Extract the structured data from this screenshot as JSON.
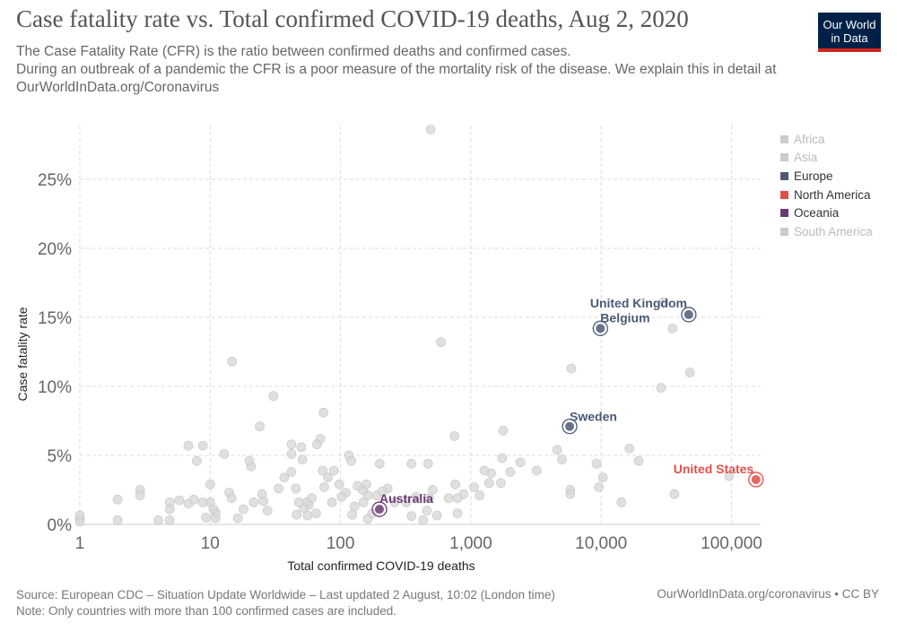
{
  "header": {
    "title": "Case fatality rate vs. Total confirmed COVID-19 deaths, Aug 2, 2020",
    "subtitle": "The Case Fatality Rate (CFR) is the ratio between confirmed deaths and confirmed cases.\n During an outbreak of a pandemic the CFR is a poor measure of the mortality risk of the disease. We explain this in detail at OurWorldInData.org/Coronavirus",
    "logo": "Our World in Data"
  },
  "footer": {
    "source": "Source: European CDC – Situation Update Worldwide – Last updated 2 August, 10:02 (London time)",
    "note": "Note: Only countries with more than 100 confirmed cases are included.",
    "license": "OurWorldInData.org/coronavirus • CC BY"
  },
  "colors": {
    "Africa": "#cccccc",
    "Asia": "#cccccc",
    "Europe": "#4c5a78",
    "North America": "#e0504a",
    "Oceania": "#6b3a76",
    "South America": "#cccccc",
    "grey_point": "#d8d8d8"
  },
  "chart_data": {
    "type": "scatter",
    "title": "Case fatality rate vs. Total confirmed COVID-19 deaths, Aug 2, 2020",
    "xlabel": "Total confirmed COVID-19 deaths",
    "ylabel": "Case fatality rate",
    "xscale": "log",
    "xlim": [
      1,
      160000
    ],
    "ylim": [
      0,
      28.6
    ],
    "xticks": [
      {
        "v": 1,
        "label": "1"
      },
      {
        "v": 10,
        "label": "10"
      },
      {
        "v": 100,
        "label": "100"
      },
      {
        "v": 1000,
        "label": "1,000"
      },
      {
        "v": 10000,
        "label": "10,000"
      },
      {
        "v": 100000,
        "label": "100,000"
      }
    ],
    "yticks": [
      {
        "v": 0,
        "label": "0%"
      },
      {
        "v": 5,
        "label": "5%"
      },
      {
        "v": 10,
        "label": "10%"
      },
      {
        "v": 15,
        "label": "15%"
      },
      {
        "v": 20,
        "label": "20%"
      },
      {
        "v": 25,
        "label": "25%"
      }
    ],
    "grid": true,
    "legend_position": "right",
    "legend": [
      {
        "name": "Africa",
        "active": false
      },
      {
        "name": "Asia",
        "active": false
      },
      {
        "name": "Europe",
        "active": true
      },
      {
        "name": "North America",
        "active": true
      },
      {
        "name": "Oceania",
        "active": true
      },
      {
        "name": "South America",
        "active": false
      }
    ],
    "highlighted": [
      {
        "label": "United Kingdom",
        "continent": "Europe",
        "x": 47000,
        "y": 15.2
      },
      {
        "label": "Belgium",
        "continent": "Europe",
        "x": 9860,
        "y": 14.2
      },
      {
        "label": "Sweden",
        "continent": "Europe",
        "x": 5730,
        "y": 7.1
      },
      {
        "label": "United States",
        "continent": "North America",
        "x": 154000,
        "y": 3.25
      },
      {
        "label": "Australia",
        "continent": "Oceania",
        "x": 199,
        "y": 1.1
      }
    ],
    "other_points": [
      [
        491,
        28.6
      ],
      [
        590,
        13.2
      ],
      [
        5900,
        11.3
      ],
      [
        28800,
        9.9
      ],
      [
        48000,
        11.0
      ],
      [
        30200,
        16.1
      ],
      [
        35300,
        14.2
      ],
      [
        750,
        6.4
      ],
      [
        1770,
        6.8
      ],
      [
        4600,
        5.4
      ],
      [
        5000,
        4.7
      ],
      [
        9200,
        4.4
      ],
      [
        10300,
        3.4
      ],
      [
        16500,
        5.5
      ],
      [
        19400,
        4.6
      ],
      [
        5800,
        2.5
      ],
      [
        5800,
        2.2
      ],
      [
        9600,
        2.7
      ],
      [
        14300,
        1.6
      ],
      [
        36500,
        2.2
      ],
      [
        96000,
        3.5
      ],
      [
        3200,
        3.9
      ],
      [
        2400,
        4.5
      ],
      [
        2000,
        3.8
      ],
      [
        1740,
        4.8
      ],
      [
        1700,
        3.0
      ],
      [
        1430,
        3.7
      ],
      [
        1380,
        3.0
      ],
      [
        1270,
        3.9
      ],
      [
        1170,
        2.1
      ],
      [
        1060,
        2.7
      ],
      [
        880,
        2.2
      ],
      [
        790,
        1.9
      ],
      [
        760,
        2.9
      ],
      [
        790,
        0.8
      ],
      [
        675,
        1.9
      ],
      [
        550,
        0.65
      ],
      [
        480,
        1.9
      ],
      [
        460,
        1.0
      ],
      [
        430,
        0.3
      ],
      [
        350,
        0.6
      ],
      [
        380,
        2.0
      ],
      [
        320,
        1.6
      ],
      [
        510,
        2.5
      ],
      [
        470,
        4.4
      ],
      [
        350,
        4.4
      ],
      [
        200,
        4.4
      ],
      [
        230,
        2.6
      ],
      [
        260,
        1.6
      ],
      [
        162,
        0.4
      ],
      [
        175,
        0.8
      ],
      [
        190,
        2.1
      ],
      [
        210,
        2.4
      ],
      [
        162,
        2.1
      ],
      [
        148,
        2.5
      ],
      [
        158,
        2.9
      ],
      [
        135,
        2.8
      ],
      [
        150,
        1.6
      ],
      [
        128,
        1.3
      ],
      [
        123,
        0.7
      ],
      [
        110,
        2.3
      ],
      [
        102,
        2.0
      ],
      [
        98,
        2.9
      ],
      [
        116,
        5.0
      ],
      [
        121,
        4.6
      ],
      [
        86,
        1.6
      ],
      [
        89,
        3.9
      ],
      [
        80,
        3.4
      ],
      [
        75,
        2.7
      ],
      [
        73,
        3.9
      ],
      [
        70,
        6.2
      ],
      [
        74,
        8.1
      ],
      [
        66,
        5.8
      ],
      [
        65,
        0.8
      ],
      [
        60,
        1.9
      ],
      [
        57,
        1.4
      ],
      [
        56,
        0.65
      ],
      [
        55,
        1.6
      ],
      [
        52,
        1.2
      ],
      [
        48,
        1.6
      ],
      [
        46,
        0.7
      ],
      [
        45.5,
        2.6
      ],
      [
        51,
        4.7
      ],
      [
        50,
        5.6
      ],
      [
        42,
        5.1
      ],
      [
        42,
        5.8
      ],
      [
        42,
        3.8
      ],
      [
        37,
        3.4
      ],
      [
        33.5,
        2.6
      ],
      [
        30.6,
        9.3
      ],
      [
        24,
        7.1
      ],
      [
        20.6,
        4.2
      ],
      [
        20,
        4.6
      ],
      [
        21.6,
        1.6
      ],
      [
        25.6,
        1.7
      ],
      [
        27.5,
        1.0
      ],
      [
        25,
        2.2
      ],
      [
        14.7,
        11.8
      ],
      [
        14,
        2.3
      ],
      [
        14.6,
        1.9
      ],
      [
        12.8,
        5.1
      ],
      [
        16.3,
        0.45
      ],
      [
        18,
        1.1
      ],
      [
        11,
        0.45
      ],
      [
        11,
        0.85
      ],
      [
        10.6,
        1.1
      ],
      [
        10,
        1.6
      ],
      [
        9.3,
        0.5
      ],
      [
        8.8,
        1.6
      ],
      [
        8.8,
        5.7
      ],
      [
        7.9,
        4.6
      ],
      [
        6.8,
        5.7
      ],
      [
        6.8,
        1.5
      ],
      [
        7.5,
        1.8
      ],
      [
        10,
        2.9
      ],
      [
        5.8,
        1.75
      ],
      [
        4.9,
        1.6
      ],
      [
        4.9,
        0.3
      ],
      [
        4.9,
        1.1
      ],
      [
        4,
        0.3
      ],
      [
        2.9,
        2.5
      ],
      [
        2.9,
        2.1
      ],
      [
        1.95,
        1.8
      ],
      [
        1.95,
        0.3
      ],
      [
        1,
        0.45
      ],
      [
        1,
        0.2
      ],
      [
        1,
        0.65
      ]
    ]
  }
}
